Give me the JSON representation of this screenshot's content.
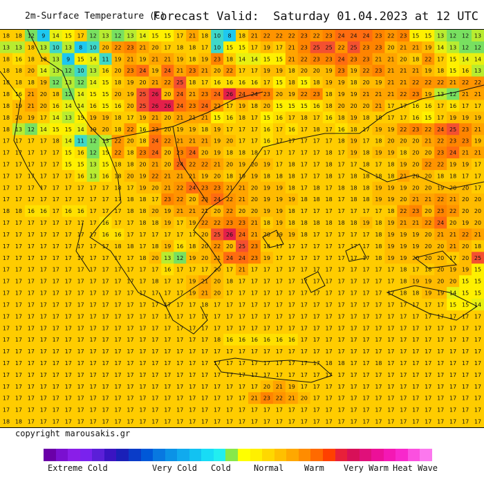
{
  "header": {
    "title": "2m-Surface Temperature (C)",
    "forecast": "Forecast Valid:  Saturday 01.04.2023 at 12 UTC"
  },
  "footer": {
    "copyright": "copyright marousakis.gr"
  },
  "legend": {
    "labels": [
      "Extreme Cold",
      "Very Cold",
      "Cold",
      "Normal",
      "Warm",
      "Very Warm",
      "Heat Wave"
    ],
    "colors": [
      "#6a00a8",
      "#7a10d0",
      "#8a1ee8",
      "#7a22ee",
      "#5b1fd8",
      "#3a14c2",
      "#1a20b8",
      "#0a3cc8",
      "#0058d8",
      "#0878e0",
      "#0b92e6",
      "#10aaee",
      "#12c2f2",
      "#18dcf6",
      "#22eef0",
      "#88e84a",
      "#ffff00",
      "#fff000",
      "#ffd800",
      "#ffc000",
      "#ffa800",
      "#ff8c00",
      "#ff6a00",
      "#ff4000",
      "#e8203a",
      "#d81058",
      "#e0107a",
      "#ec1098",
      "#f418b4",
      "#f828cc",
      "#fb50e0",
      "#fc78ee"
    ],
    "accent_background": "#ffcc00"
  },
  "map_rows": [
    "18 18 12 9 14 15 17 12 13 12 13 14 15 15 17 21 18 10 8 18 21 22 22 22 23 22 23 24 24 24 23 22 23 15 15 13 12 12 13",
    "13 13 18 13 10 13 8 10 20 22 23 21 20 17 18 18 17 10 15 15 17 19 17 21 23 25 25 22 25 23 23 20 21 21 19 14 13 12 12",
    "18 16 18 18 13 9 15 14 11 19 21 19 21 21 19 18 19 23 18 14 14 15 15 21 22 23 23 24 23 23 21 21 20 18 22 17 15 14 14",
    "18 18 20 14 13 12 10 13 16 20 23 24 19 24 21 23 21 20 22 17 17 19 19 18 20 20 19 23 19 22 23 21 21 21 19 18 15 16 13",
    "18 18 18 19 12 13 12 14 15 18 19 20 21 22 25 18 17 16 16 16 16 17 15 18 15 18 19 19 18 20 19 21 21 22 22 22 21 22 22",
    "18 16 21 20 18 12 14 15 15 20 19 25 26 20 24 21 23 24 26 24 24 23 20 19 22 23 18 19 19 21 21 21 22 23 19 13 12 21 21",
    "18 19 21 20 16 14 14 16 15 16 20 25 26 26 24 23 24 22 17 19 18 20 15 15 15 16 18 20 20 20 21 17 17 16 16 17 16 17 17",
    "18 20 19 17 14 13 15 19 19 18 17 19 21 20 21 21 21 15 16 18 17 15 16 17 18 17 16 18 19 18 18 17 17 16 15 17 19 19 19",
    "18 13 12 14 15 15 14 19 20 18 22 16 23 20 19 19 18 19 17 17 17 16 17 16 17 18 17 16 18 17 19 19 22 23 22 24 25 23 21",
    "17 17 17 17 18 14 11 12 13 22 20 18 24 22 21 21 21 19 20 17 17 16 17 17 17 17 17 18 19 17 18 20 20 20 21 22 23 23 19",
    "17 17 17 17 17 15 16 12 15 22 18 23 24 20 23 24 20 19 18 18 18 17 17 17 17 17 18 17 19 18 19 19 18 20 20 23 24 21 21",
    "17 17 17 17 17 15 15 13 15 18 18 20 21 20 24 22 22 21 20 19 20 19 17 18 17 17 18 17 17 18 17 18 19 20 22 22 19 19 17",
    "17 17 17 17 17 17 16 13 16 18 20 19 22 21 21 21 19 20 18 19 19 18 18 18 17 17 18 17 18 18 18 18 21 20 20 18 18 17 17",
    "17 17 17 17 17 17 17 17 17 18 17 19 20 21 22 24 23 23 21 21 20 19 19 18 17 18 17 18 18 18 19 19 19 20 20 19 20 20 17",
    "17 17 17 17 17 17 17 17 17 17 18 18 17 23 22 20 23 24 22 21 20 19 19 19 18 18 18 17 18 18 19 19 20 21 21 22 21 20 20",
    "18 18 16 16 17 16 16 17 17 17 18 18 20 19 21 21 21 20 22 20 20 19 19 18 17 17 17 17 17 17 17 18 22 23 20 23 22 20 20",
    "17 17 17 17 17 17 17 17 16 17 17 18 18 19 17 19 22 22 23 23 21 18 19 18 18 18 18 18 18 19 18 19 21 21 22 24 20 19 20",
    "17 17 17 17 17 17 17 17 16 16 17 17 17 17 17 17 20 25 26 24 21 20 19 19 18 17 17 17 17 17 18 19 19 19 20 21 21 22 21",
    "17 17 17 17 17 17 17 17 17 18 18 17 18 19 16 18 20 22 20 25 23 18 17 17 17 17 17 17 17 17 18 19 19 19 20 20 21 20 18",
    "17 17 17 17 17 17 17 17 17 17 17 18 20 13 12 19 20 21 24 24 23 19 17 17 17 17 17 17 17 17 18 19 19 20 20 20 17 20 25",
    "17 17 17 17 17 17 17 17 17 17 17 17 17 16 17 17 17 20 17 21 17 17 17 17 17 17 17 17 17 17 17 17 18 17 18 20 19 19 15",
    "17 17 17 17 17 17 17 17 17 17 17 17 18 17 17 19 21 20 18 17 17 17 17 17 17 17 17 17 17 17 17 17 18 19 19 20 20 15 15",
    "17 17 17 17 17 17 17 17 17 17 17 17 17 17 17 19 21 20 17 17 17 17 17 17 17 17 17 17 17 17 17 17 18 18 19 19 14 15 15",
    "17 17 17 17 17 17 17 17 17 17 17 17 17 17 17 17 18 17 17 17 17 17 17 17 17 17 17 17 17 17 17 17 17 17 17 17 15 15 14",
    "17 17 17 17 17 17 17 17 17 17 17 17 17 17 17 17 17 17 17 17 17 17 17 17 17 17 17 17 17 17 17 17 17 17 17 17 17 17 17",
    "17 17 17 17 17 17 17 17 17 17 17 17 17 17 17 17 17 17 17 17 17 17 17 17 17 17 17 17 17 17 17 17 17 17 17 17 17 17 17",
    "17 17 17 17 17 17 17 17 17 17 17 17 17 17 17 17 17 18 16 16 16 16 16 16 17 17 17 17 17 17 17 17 17 17 17 17 17 17 17",
    "17 17 17 17 17 17 17 17 17 17 17 17 17 17 17 17 17 17 17 17 17 17 17 17 17 17 17 17 17 17 17 17 17 17 17 17 17 17 17",
    "17 17 17 17 17 17 17 17 17 17 17 17 17 17 17 17 17 17 17 17 17 17 17 17 17 17 18 18 17 17 18 17 17 17 17 17 17 17 17",
    "17 17 17 17 17 17 17 17 17 17 17 17 17 17 17 17 17 17 17 17 17 17 17 17 17 17 17 17 17 17 17 17 17 17 17 17 17 17 17",
    "17 17 17 17 17 17 17 17 17 17 17 17 17 17 17 17 17 17 17 17 17 20 21 19 17 17 17 17 17 17 17 17 17 17 17 17 17 17 17",
    "17 17 17 17 17 17 17 17 17 17 17 17 17 17 17 17 17 17 17 17 21 23 22 21 20 17 17 17 17 17 17 17 17 17 17 17 17 17 17",
    "17 17 17 17 17 17 17 17 17 17 17 17 17 17 17 17 17 17 17 17 17 17 17 17 17 17 17 17 17 17 17 17 17 17 17 17 17 17 17",
    "18 18 17 17 17 17 17 17 17 17 17 17 17 17 17 17 17 17 17 17 17 17 17 17 17 17 17 17 17 17 17 17 17 17 17 17 17 17 17"
  ]
}
